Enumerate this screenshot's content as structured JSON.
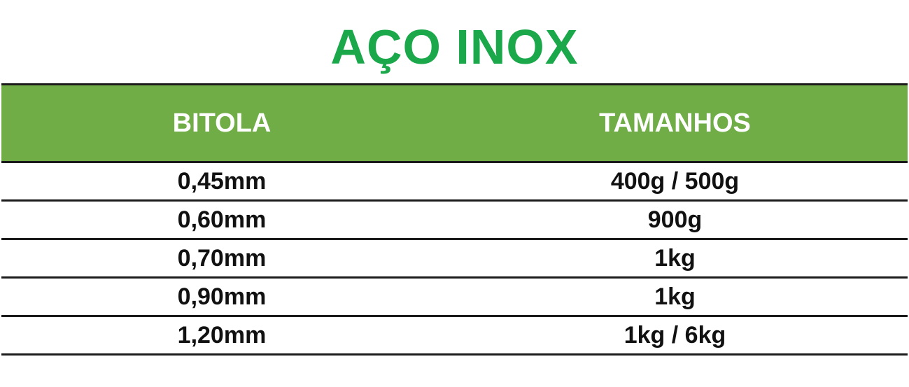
{
  "title": "AÇO INOX",
  "colors": {
    "title": "#1aa84b",
    "header_background": "#70ad47",
    "header_text": "#ffffff",
    "border": "#1b1b1b"
  },
  "table": {
    "headers": [
      "BITOLA",
      "TAMANHOS"
    ],
    "rows": [
      [
        "0,45mm",
        "400g / 500g"
      ],
      [
        "0,60mm",
        "900g"
      ],
      [
        "0,70mm",
        "1kg"
      ],
      [
        "0,90mm",
        "1kg"
      ],
      [
        "1,20mm",
        "1kg / 6kg"
      ]
    ]
  }
}
